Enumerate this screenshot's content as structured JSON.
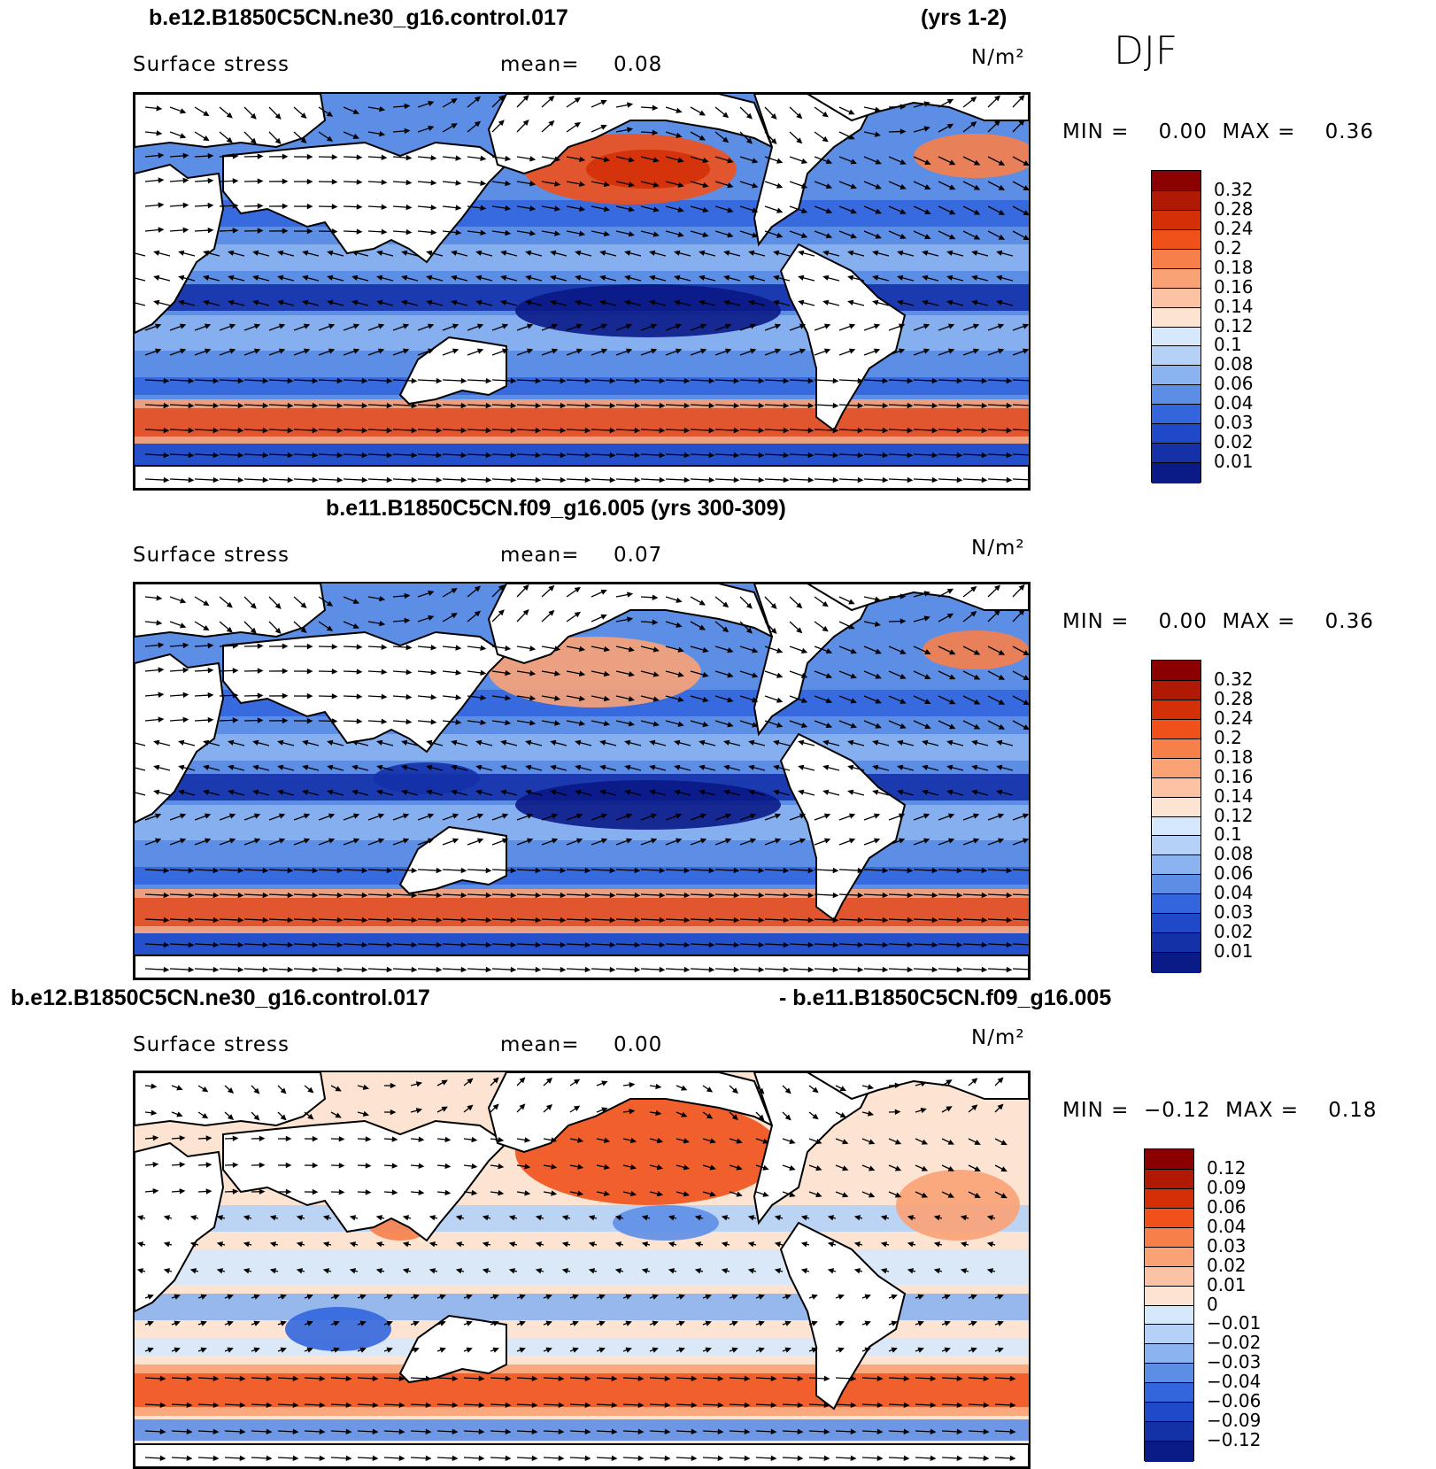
{
  "djf": "DJF",
  "panels": [
    {
      "title_left": "b.e12.B1850C5CN.ne30_g16.control.017",
      "title_right": "(yrs 1-2)",
      "subtitle": "Surface stress",
      "mean_label": "mean=",
      "mean_value": "0.08",
      "units": "N/m²",
      "minmax": "MIN =    0.00  MAX =    0.36",
      "colorbar_labels": [
        "0.32",
        "0.28",
        "0.24",
        "0.2",
        "0.18",
        "0.16",
        "0.14",
        "0.12",
        "0.1",
        "0.08",
        "0.06",
        "0.04",
        "0.03",
        "0.02",
        "0.01"
      ],
      "colors": [
        "#8b0000",
        "#b01a05",
        "#d43008",
        "#f0501a",
        "#f7804a",
        "#f9a275",
        "#fbc3a3",
        "#fde4d2",
        "#d6e8fb",
        "#b5d1f7",
        "#8bb3f0",
        "#5d8ee6",
        "#3366dd",
        "#1f49c8",
        "#1531a8",
        "#0a1a86"
      ]
    },
    {
      "title_left": "b.e11.B1850C5CN.f09_g16.005 (yrs 300-309)",
      "subtitle": "Surface stress",
      "mean_label": "mean=",
      "mean_value": "0.07",
      "units": "N/m²",
      "minmax": "MIN =    0.00  MAX =    0.36",
      "colorbar_labels": [
        "0.32",
        "0.28",
        "0.24",
        "0.2",
        "0.18",
        "0.16",
        "0.14",
        "0.12",
        "0.1",
        "0.08",
        "0.06",
        "0.04",
        "0.03",
        "0.02",
        "0.01"
      ],
      "colors": [
        "#8b0000",
        "#b01a05",
        "#d43008",
        "#f0501a",
        "#f7804a",
        "#f9a275",
        "#fbc3a3",
        "#fde4d2",
        "#d6e8fb",
        "#b5d1f7",
        "#8bb3f0",
        "#5d8ee6",
        "#3366dd",
        "#1f49c8",
        "#1531a8",
        "#0a1a86"
      ]
    },
    {
      "title_left": "b.e12.B1850C5CN.ne30_g16.control.017",
      "title_right": "- b.e11.B1850C5CN.f09_g16.005",
      "subtitle": "Surface stress",
      "mean_label": "mean=",
      "mean_value": "0.00",
      "units": "N/m²",
      "minmax": "MIN =  −0.12  MAX =    0.18",
      "colorbar_labels": [
        "0.12",
        "0.09",
        "0.06",
        "0.04",
        "0.03",
        "0.02",
        "0.01",
        "0",
        "−0.01",
        "−0.02",
        "−0.03",
        "−0.04",
        "−0.06",
        "−0.09",
        "−0.12"
      ],
      "colors": [
        "#8b0000",
        "#b01a05",
        "#d43008",
        "#f0501a",
        "#f7804a",
        "#f9a275",
        "#fbc3a3",
        "#fde4d2",
        "#d6e8fb",
        "#b5d1f7",
        "#8bb3f0",
        "#5d8ee6",
        "#3366dd",
        "#1f49c8",
        "#1531a8",
        "#0a1a86"
      ]
    }
  ]
}
